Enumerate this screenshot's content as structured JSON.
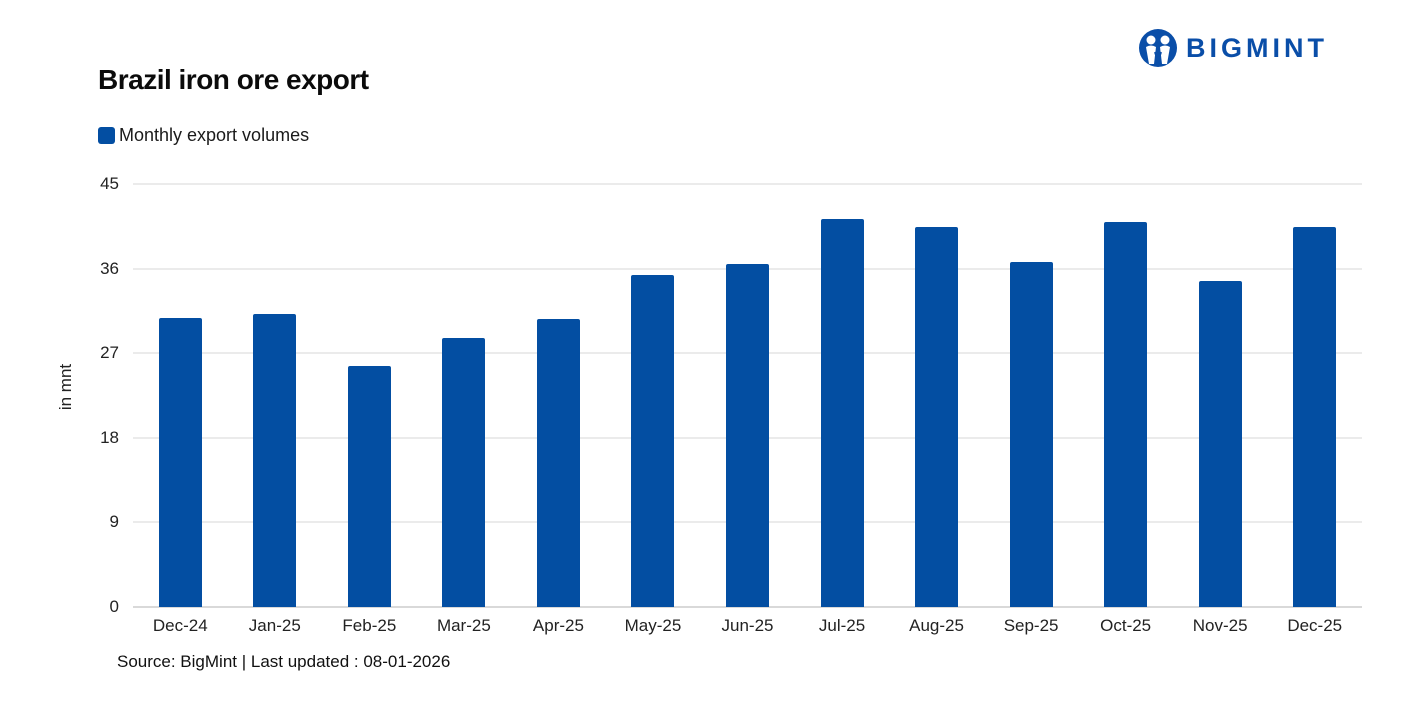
{
  "header": {
    "title": "Brazil iron ore export",
    "logo_text": "BIGMINT",
    "logo_icon": "bigmint-people-icon"
  },
  "colors": {
    "bar": "#034ea2",
    "brand": "#0a4ea8",
    "grid": "#ebebeb"
  },
  "legend": {
    "items": [
      {
        "label": "Monthly export volumes",
        "color": "#034ea2"
      }
    ]
  },
  "footer": {
    "source": "Source: BigMint | Last updated : 08-01-2026"
  },
  "chart_data": {
    "type": "bar",
    "title": "Brazil iron ore export",
    "xlabel": "",
    "ylabel": "in mnt",
    "ylim": [
      0,
      45
    ],
    "yticks": [
      0,
      9,
      18,
      27,
      36,
      45
    ],
    "grid": true,
    "legend_position": "top-left",
    "categories": [
      "Dec-24",
      "Jan-25",
      "Feb-25",
      "Mar-25",
      "Apr-25",
      "May-25",
      "Jun-25",
      "Jul-25",
      "Aug-25",
      "Sep-25",
      "Oct-25",
      "Nov-25",
      "Dec-25"
    ],
    "series": [
      {
        "name": "Monthly export volumes",
        "color": "#034ea2",
        "values": [
          30.7,
          31.2,
          25.6,
          28.6,
          30.6,
          35.3,
          36.5,
          41.3,
          40.4,
          36.7,
          41.0,
          34.7,
          40.4
        ]
      }
    ],
    "source": "Source: BigMint | Last updated : 08-01-2026"
  }
}
